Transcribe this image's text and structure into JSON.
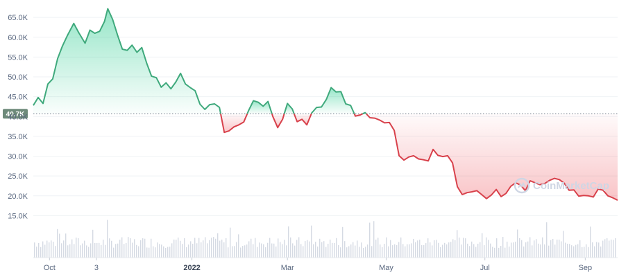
{
  "watermark": {
    "text": "CoinMarketCap",
    "icon": "coinmarketcap-logo-icon"
  },
  "colors": {
    "up": "#16c784",
    "upLine": "#3fa97c",
    "down": "#ea3943",
    "downLine": "#d8414b",
    "grid": "#eff2f5",
    "refLine": "#6b7785",
    "refBadge": "#6d8a7a",
    "volume": "#d5dae3"
  },
  "chart_data": {
    "type": "area",
    "title": "",
    "xlabel": "",
    "ylabel": "",
    "ylim": [
      10000,
      68000
    ],
    "yticks": [
      {
        "value": 15000,
        "label": "15.0K"
      },
      {
        "value": 20000,
        "label": "20.0K"
      },
      {
        "value": 25000,
        "label": "25.0K"
      },
      {
        "value": 30000,
        "label": "30.0K"
      },
      {
        "value": 35000,
        "label": "35.0K"
      },
      {
        "value": 40000,
        "label": "40.0K"
      },
      {
        "value": 45000,
        "label": "45.0K"
      },
      {
        "value": 50000,
        "label": "50.0K"
      },
      {
        "value": 55000,
        "label": "55.0K"
      },
      {
        "value": 60000,
        "label": "60.0K"
      },
      {
        "value": 65000,
        "label": "65.0K"
      }
    ],
    "xticks": [
      {
        "date": "2021-10-05",
        "label": "Oct",
        "bold": false
      },
      {
        "date": "2021-11-03",
        "label": "3",
        "bold": false
      },
      {
        "date": "2022-01-01",
        "label": "2022",
        "bold": true
      },
      {
        "date": "2022-03-01",
        "label": "Mar",
        "bold": false
      },
      {
        "date": "2022-05-01",
        "label": "May",
        "bold": false
      },
      {
        "date": "2022-07-01",
        "label": "Jul",
        "bold": false
      },
      {
        "date": "2022-09-01",
        "label": "Sep",
        "bold": false
      }
    ],
    "reference": {
      "value": 40700,
      "label": "40.7K"
    },
    "grid": true,
    "series": [
      {
        "values_x": [
          "2021-09-25",
          "2021-09-28",
          "2021-10-01",
          "2021-10-04",
          "2021-10-07",
          "2021-10-10",
          "2021-10-13",
          "2021-10-16",
          "2021-10-20",
          "2021-10-23",
          "2021-10-27",
          "2021-10-30",
          "2021-11-02",
          "2021-11-05",
          "2021-11-08",
          "2021-11-10",
          "2021-11-13",
          "2021-11-16",
          "2021-11-19",
          "2021-11-22",
          "2021-11-25",
          "2021-11-28",
          "2021-12-01",
          "2021-12-04",
          "2021-12-07",
          "2021-12-10",
          "2021-12-13",
          "2021-12-16",
          "2021-12-19",
          "2021-12-22",
          "2021-12-25",
          "2021-12-28",
          "2021-12-31",
          "2022-01-03",
          "2022-01-06",
          "2022-01-09",
          "2022-01-12",
          "2022-01-15",
          "2022-01-18",
          "2022-01-21",
          "2022-01-24",
          "2022-01-27",
          "2022-01-30",
          "2022-02-02",
          "2022-02-05",
          "2022-02-08",
          "2022-02-11",
          "2022-02-14",
          "2022-02-17",
          "2022-02-20",
          "2022-02-23",
          "2022-02-26",
          "2022-03-01",
          "2022-03-04",
          "2022-03-07",
          "2022-03-10",
          "2022-03-13",
          "2022-03-16",
          "2022-03-19",
          "2022-03-22",
          "2022-03-25",
          "2022-03-28",
          "2022-03-31",
          "2022-04-03",
          "2022-04-06",
          "2022-04-09",
          "2022-04-12",
          "2022-04-15",
          "2022-04-18",
          "2022-04-21",
          "2022-04-24",
          "2022-04-27",
          "2022-04-30",
          "2022-05-03",
          "2022-05-06",
          "2022-05-09",
          "2022-05-12",
          "2022-05-15",
          "2022-05-18",
          "2022-05-21",
          "2022-05-24",
          "2022-05-27",
          "2022-05-30",
          "2022-06-02",
          "2022-06-05",
          "2022-06-08",
          "2022-06-11",
          "2022-06-14",
          "2022-06-17",
          "2022-06-20",
          "2022-06-23",
          "2022-06-26",
          "2022-06-29",
          "2022-07-02",
          "2022-07-05",
          "2022-07-08",
          "2022-07-11",
          "2022-07-14",
          "2022-07-17",
          "2022-07-20",
          "2022-07-23",
          "2022-07-26",
          "2022-07-29",
          "2022-08-01",
          "2022-08-04",
          "2022-08-07",
          "2022-08-10",
          "2022-08-13",
          "2022-08-16",
          "2022-08-19",
          "2022-08-22",
          "2022-08-25",
          "2022-08-28",
          "2022-08-31",
          "2022-09-03",
          "2022-09-06",
          "2022-09-09",
          "2022-09-12",
          "2022-09-15",
          "2022-09-18",
          "2022-09-21"
        ],
        "values": [
          42800,
          44800,
          43300,
          48200,
          49500,
          54600,
          57800,
          60400,
          63500,
          61200,
          58500,
          61800,
          61000,
          61500,
          64000,
          67200,
          64500,
          60600,
          57000,
          56700,
          58000,
          56200,
          57400,
          53500,
          50200,
          49800,
          47400,
          48500,
          47000,
          48700,
          50900,
          48200,
          47300,
          46500,
          43100,
          41800,
          43000,
          43200,
          42300,
          36000,
          36400,
          37400,
          37900,
          38600,
          41500,
          44000,
          43600,
          42600,
          43800,
          40000,
          37200,
          39300,
          43300,
          41900,
          38700,
          39300,
          37900,
          40900,
          42300,
          42400,
          44300,
          47300,
          46200,
          46300,
          43200,
          42800,
          40100,
          40400,
          41000,
          39700,
          39600,
          39100,
          38400,
          38500,
          36500,
          30100,
          29000,
          29800,
          30100,
          29300,
          29100,
          28800,
          31700,
          30200,
          29900,
          30100,
          28300,
          22300,
          20300,
          20800,
          21000,
          21300,
          20300,
          19300,
          20200,
          21600,
          19800,
          20600,
          22400,
          23300,
          22700,
          21300,
          23800,
          23300,
          22800,
          23100,
          23900,
          24400,
          24100,
          23200,
          21400,
          21500,
          19900,
          20100,
          20000,
          19700,
          21700,
          21400,
          20000,
          19500,
          18900
        ]
      }
    ]
  }
}
